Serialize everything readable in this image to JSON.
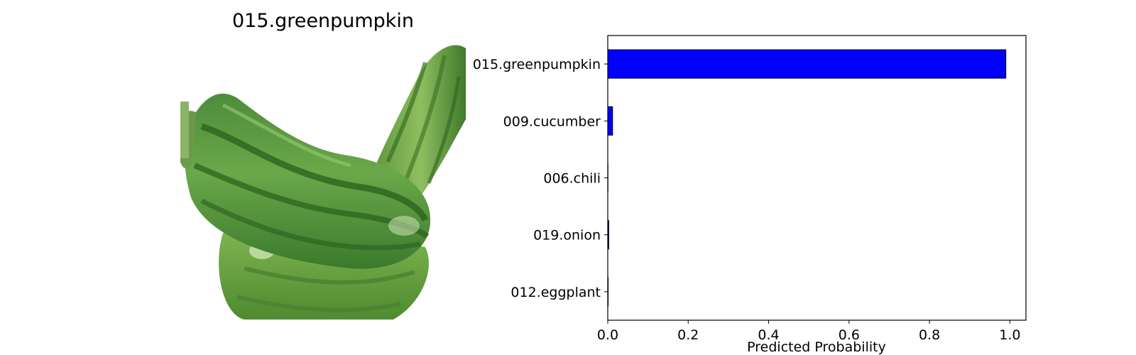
{
  "image_panel": {
    "title": "015.greenpumpkin",
    "depicts": "green-pumpkin-photo"
  },
  "chart_data": {
    "type": "bar",
    "orientation": "horizontal",
    "categories": [
      "015.greenpumpkin",
      "009.cucumber",
      "006.chili",
      "019.onion",
      "012.eggplant"
    ],
    "values": [
      0.99,
      0.012,
      0.0005,
      0.0025,
      0.001
    ],
    "xlabel": "Predicted Probability",
    "ylabel": "",
    "xlim": [
      0,
      1.04
    ],
    "xticks": [
      "0.0",
      "0.2",
      "0.4",
      "0.6",
      "0.8",
      "1.0"
    ],
    "grid": false,
    "bar_color": "#0000ff",
    "edge_color": "#000000"
  }
}
